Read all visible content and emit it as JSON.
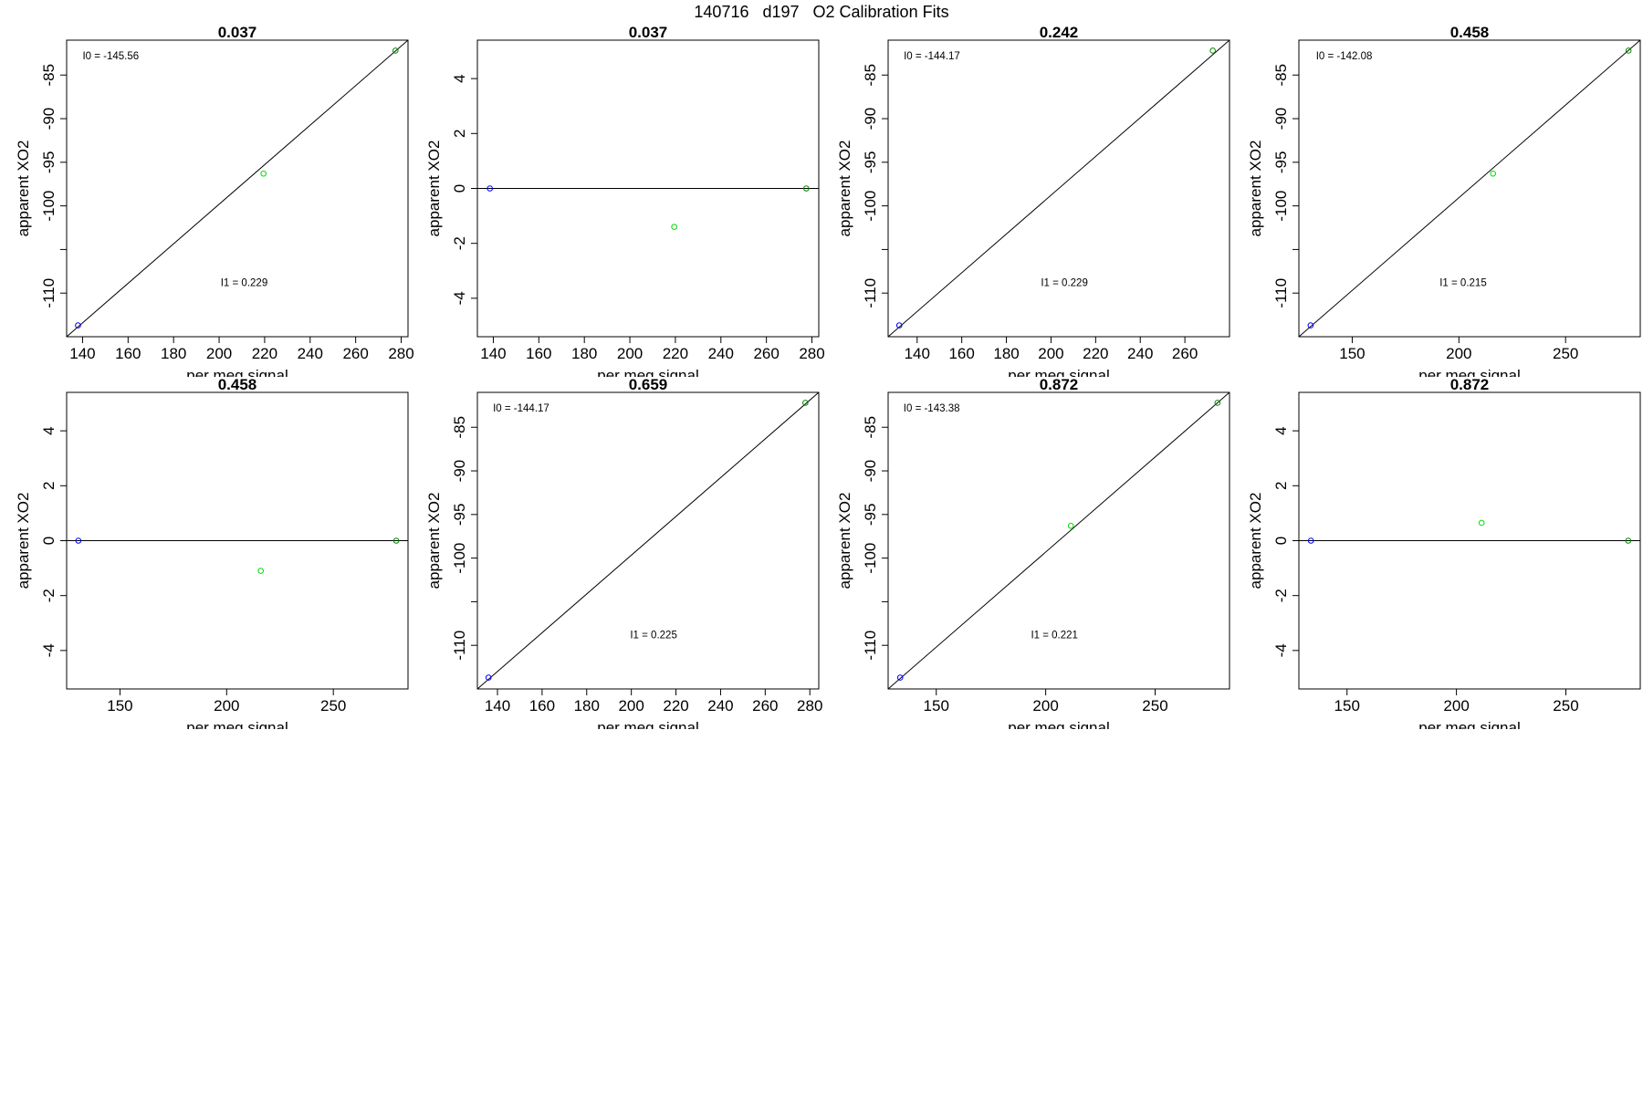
{
  "title": "140716   d197   O2 Calibration Fits",
  "colors": {
    "frame": "#000000",
    "fit_line": "#000000",
    "point_blue": "#0000ff",
    "point_green": "#00dd00",
    "point_darkgreen": "#008800"
  },
  "chart_data": [
    {
      "type": "scatter",
      "title": "0.037",
      "xlabel": "per meg signal",
      "ylabel": "apparent XO2",
      "xlim": [
        133,
        283
      ],
      "ylim": [
        -115,
        -81
      ],
      "xticks": [
        "140",
        "160",
        "180",
        "200",
        "220",
        "240",
        "260",
        "280"
      ],
      "yticks": [
        "-85",
        "-90",
        "-95",
        "-100",
        "-110"
      ],
      "points": [
        {
          "x": 138,
          "y": -113.7,
          "color": "point_blue"
        },
        {
          "x": 219.5,
          "y": -96.3,
          "color": "point_green"
        },
        {
          "x": 277.5,
          "y": -82.2,
          "color": "point_darkgreen"
        }
      ],
      "fit": {
        "type": "segment",
        "x": [
          133,
          283
        ],
        "y": [
          -115,
          -81
        ]
      },
      "annotations": [
        {
          "text": "I0 =  -145.56",
          "x": 140,
          "y": -83.2,
          "anchor": "start"
        },
        {
          "text": "I1 =  0.229",
          "x": 211,
          "y": -109.2,
          "anchor": "middle"
        }
      ]
    },
    {
      "type": "scatter",
      "title": "0.037",
      "xlabel": "per meg signal",
      "ylabel": "apparent XO2",
      "xlim": [
        133,
        283
      ],
      "ylim": [
        -5.4,
        5.4
      ],
      "xticks": [
        "140",
        "160",
        "180",
        "200",
        "220",
        "240",
        "260",
        "280"
      ],
      "yticks": [
        "4",
        "2",
        "0",
        "-2",
        "-4"
      ],
      "points": [
        {
          "x": 138.5,
          "y": 0,
          "color": "point_blue"
        },
        {
          "x": 219.5,
          "y": -1.4,
          "color": "point_green"
        },
        {
          "x": 277.5,
          "y": 0,
          "color": "point_darkgreen"
        }
      ],
      "fit": {
        "type": "hline",
        "y": 0
      },
      "annotations": []
    },
    {
      "type": "scatter",
      "title": "0.242",
      "xlabel": "per meg signal",
      "ylabel": "apparent XO2",
      "xlim": [
        127,
        280
      ],
      "ylim": [
        -115,
        -81
      ],
      "xticks": [
        "140",
        "160",
        "180",
        "200",
        "220",
        "240",
        "260"
      ],
      "yticks": [
        "-85",
        "-90",
        "-95",
        "-100",
        "-110"
      ],
      "points": [
        {
          "x": 132,
          "y": -113.7,
          "color": "point_blue"
        },
        {
          "x": 272.5,
          "y": -82.2,
          "color": "point_darkgreen"
        }
      ],
      "fit": {
        "type": "segment",
        "x": [
          127,
          280
        ],
        "y": [
          -115,
          -81
        ]
      },
      "annotations": [
        {
          "text": "I0 =  -144.17",
          "x": 134,
          "y": -83.2,
          "anchor": "start"
        },
        {
          "text": "I1 =  0.229",
          "x": 206,
          "y": -109.2,
          "anchor": "middle"
        }
      ]
    },
    {
      "type": "scatter",
      "title": "0.458",
      "xlabel": "per meg signal",
      "ylabel": "apparent XO2",
      "xlim": [
        125,
        285
      ],
      "ylim": [
        -115,
        -81
      ],
      "xticks": [
        "150",
        "200",
        "250"
      ],
      "yticks": [
        "-85",
        "-90",
        "-95",
        "-100",
        "-110"
      ],
      "points": [
        {
          "x": 130.5,
          "y": -113.7,
          "color": "point_blue"
        },
        {
          "x": 216,
          "y": -96.3,
          "color": "point_green"
        },
        {
          "x": 279.5,
          "y": -82.2,
          "color": "point_darkgreen"
        }
      ],
      "fit": {
        "type": "segment",
        "x": [
          125,
          285
        ],
        "y": [
          -115,
          -81
        ]
      },
      "annotations": [
        {
          "text": "I0 =  -142.08",
          "x": 133,
          "y": -83.2,
          "anchor": "start"
        },
        {
          "text": "I1 =  0.215",
          "x": 202,
          "y": -109.2,
          "anchor": "middle"
        }
      ]
    },
    {
      "type": "scatter",
      "title": "0.458",
      "xlabel": "per meg signal",
      "ylabel": "apparent XO2",
      "xlim": [
        125,
        285
      ],
      "ylim": [
        -5.4,
        5.4
      ],
      "xticks": [
        "150",
        "200",
        "250"
      ],
      "yticks": [
        "4",
        "2",
        "0",
        "-2",
        "-4"
      ],
      "points": [
        {
          "x": 130.5,
          "y": 0,
          "color": "point_blue"
        },
        {
          "x": 216,
          "y": -1.1,
          "color": "point_green"
        },
        {
          "x": 279.5,
          "y": 0,
          "color": "point_darkgreen"
        }
      ],
      "fit": {
        "type": "hline",
        "y": 0
      },
      "annotations": []
    },
    {
      "type": "scatter",
      "title": "0.659",
      "xlabel": "per meg signal",
      "ylabel": "apparent XO2",
      "xlim": [
        131,
        284
      ],
      "ylim": [
        -115,
        -81
      ],
      "xticks": [
        "140",
        "160",
        "180",
        "200",
        "220",
        "240",
        "260",
        "280"
      ],
      "yticks": [
        "-85",
        "-90",
        "-95",
        "-100",
        "-110"
      ],
      "points": [
        {
          "x": 136,
          "y": -113.7,
          "color": "point_blue"
        },
        {
          "x": 278,
          "y": -82.2,
          "color": "point_darkgreen"
        }
      ],
      "fit": {
        "type": "segment",
        "x": [
          131,
          284
        ],
        "y": [
          -115,
          -81
        ]
      },
      "annotations": [
        {
          "text": "I0 =  -144.17",
          "x": 138,
          "y": -83.2,
          "anchor": "start"
        },
        {
          "text": "I1 =  0.225",
          "x": 210,
          "y": -109.2,
          "anchor": "middle"
        }
      ]
    },
    {
      "type": "scatter",
      "title": "0.872",
      "xlabel": "per meg signal",
      "ylabel": "apparent XO2",
      "xlim": [
        128,
        284
      ],
      "ylim": [
        -115,
        -81
      ],
      "xticks": [
        "150",
        "200",
        "250"
      ],
      "yticks": [
        "-85",
        "-90",
        "-95",
        "-100",
        "-110"
      ],
      "points": [
        {
          "x": 133.5,
          "y": -113.7,
          "color": "point_blue"
        },
        {
          "x": 211.5,
          "y": -96.3,
          "color": "point_green"
        },
        {
          "x": 278.5,
          "y": -82.2,
          "color": "point_darkgreen"
        }
      ],
      "fit": {
        "type": "segment",
        "x": [
          128,
          284
        ],
        "y": [
          -115,
          -81
        ]
      },
      "annotations": [
        {
          "text": "I0 =  -143.38",
          "x": 135,
          "y": -83.2,
          "anchor": "start"
        },
        {
          "text": "I1 =  0.221",
          "x": 204,
          "y": -109.2,
          "anchor": "middle"
        }
      ]
    },
    {
      "type": "scatter",
      "title": "0.872",
      "xlabel": "per meg signal",
      "ylabel": "apparent XO2",
      "xlim": [
        128,
        284
      ],
      "ylim": [
        -5.4,
        5.4
      ],
      "xticks": [
        "150",
        "200",
        "250"
      ],
      "yticks": [
        "4",
        "2",
        "0",
        "-2",
        "-4"
      ],
      "points": [
        {
          "x": 133.5,
          "y": 0,
          "color": "point_blue"
        },
        {
          "x": 211.5,
          "y": 0.65,
          "color": "point_green"
        },
        {
          "x": 278.5,
          "y": 0,
          "color": "point_darkgreen"
        }
      ],
      "fit": {
        "type": "hline",
        "y": 0
      },
      "annotations": []
    }
  ]
}
